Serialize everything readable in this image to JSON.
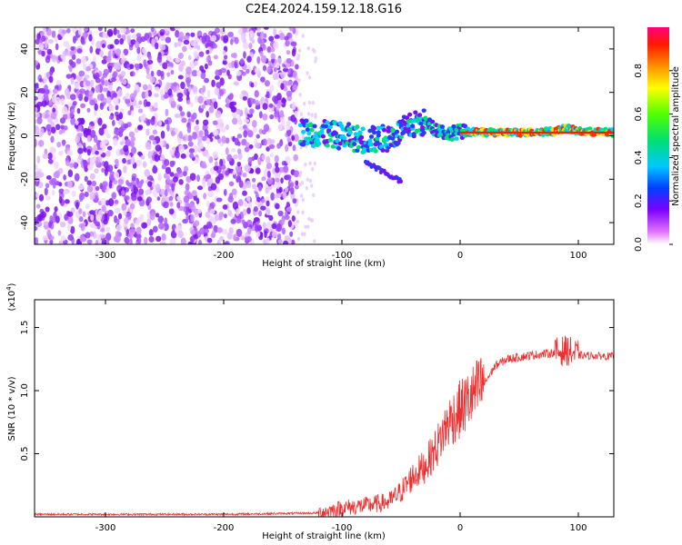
{
  "title": "C2E4.2024.159.12.18.G16",
  "colorbar": {
    "label": "Normalized spectral amplitude",
    "ticks": [
      "0.0",
      "0.2",
      "0.4",
      "0.6",
      "0.8"
    ],
    "tick_values": [
      0.0,
      0.2,
      0.4,
      0.6,
      0.8
    ]
  },
  "chart_data": [
    {
      "type": "heatmap",
      "name": "spectrogram",
      "xlabel": "Height of straight line (km)",
      "ylabel": "Frequency (Hz)",
      "xlim": [
        -360,
        130
      ],
      "ylim": [
        -50,
        50
      ],
      "x_ticks": [
        -300,
        -200,
        -100,
        0,
        100
      ],
      "x_tick_labels": [
        "-300",
        "-200",
        "-100",
        "0",
        "100"
      ],
      "y_ticks": [
        -40,
        -20,
        0,
        20,
        40
      ],
      "y_tick_labels": [
        "-40",
        "-20",
        "0",
        "20",
        "40"
      ],
      "noise_region_x": [
        -360,
        -138
      ],
      "signal_tone_hz": 1.5,
      "tone_ridge": {
        "x": [
          -135,
          -120,
          -100,
          -80,
          -60,
          -40,
          -30,
          -20,
          -10,
          0,
          20,
          50,
          80,
          90,
          100,
          130
        ],
        "y": [
          2,
          1,
          0,
          -2,
          -1,
          5,
          6,
          3,
          1,
          2,
          1.5,
          1.5,
          2,
          3.5,
          2,
          1.5
        ]
      }
    },
    {
      "type": "line",
      "name": "snr",
      "xlabel": "Height of straight line (km)",
      "ylabel": "SNR (10 * v/v)",
      "y_scale_label": "(x10",
      "y_scale_exp": "4",
      "y_scale_suffix": ")",
      "xlim": [
        -360,
        130
      ],
      "ylim": [
        0.0,
        1.72
      ],
      "x_ticks": [
        -300,
        -200,
        -100,
        0,
        100
      ],
      "x_tick_labels": [
        "-300",
        "-200",
        "-100",
        "0",
        "100"
      ],
      "y_ticks": [
        0.5,
        1.0,
        1.5
      ],
      "y_tick_labels": [
        "0.5",
        "1.0",
        "1.5"
      ],
      "series": [
        {
          "name": "SNR",
          "color": "#ee3030",
          "envelope_x": [
            -360,
            -200,
            -120,
            -100,
            -80,
            -60,
            -50,
            -40,
            -30,
            -20,
            -10,
            0,
            10,
            20,
            30,
            40,
            60,
            80,
            90,
            95,
            100,
            130
          ],
          "envelope_y": [
            0.02,
            0.02,
            0.03,
            0.07,
            0.09,
            0.12,
            0.2,
            0.32,
            0.4,
            0.55,
            0.75,
            0.85,
            0.95,
            1.05,
            1.2,
            1.25,
            1.28,
            1.3,
            1.32,
            1.3,
            1.28,
            1.27
          ]
        }
      ]
    }
  ]
}
